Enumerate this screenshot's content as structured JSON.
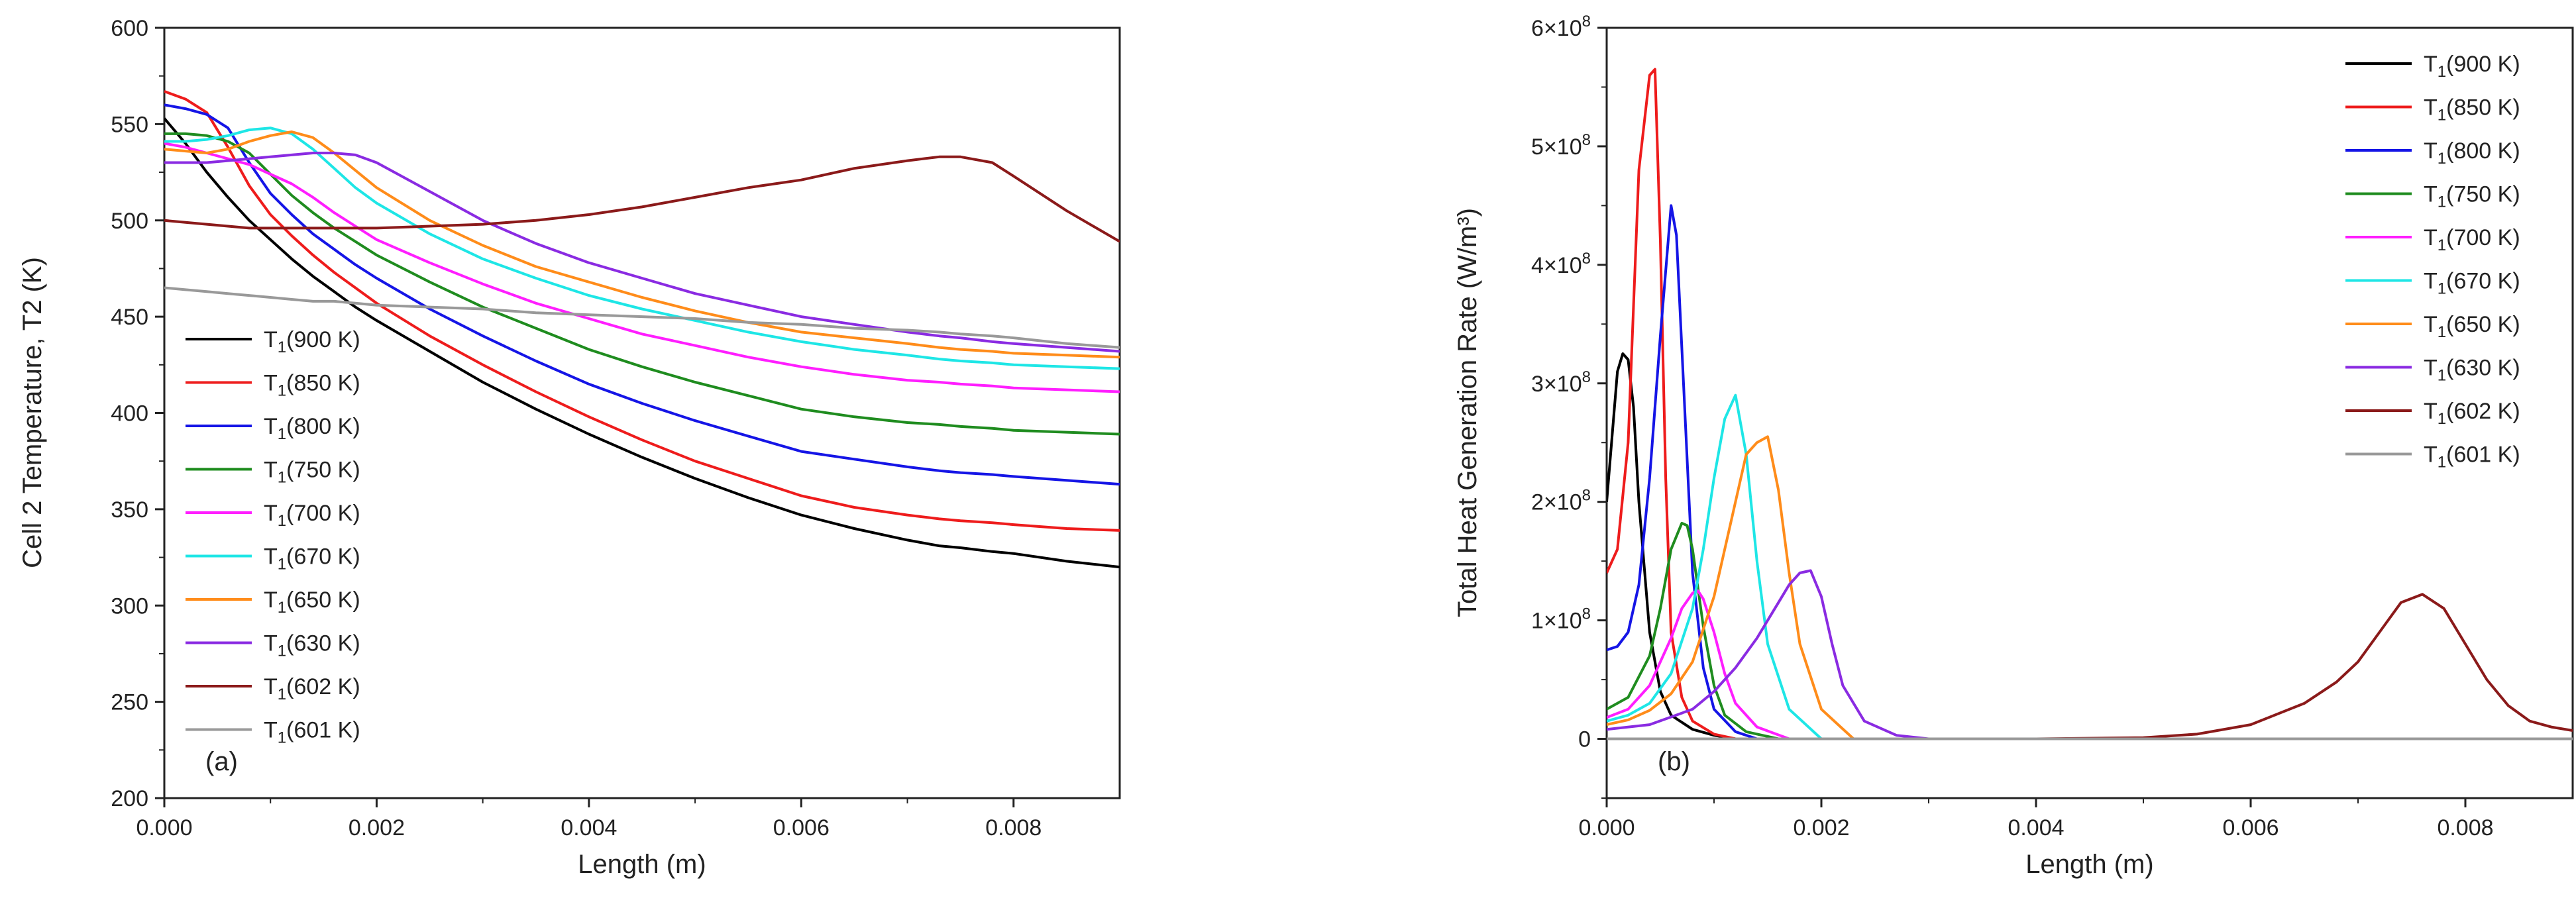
{
  "chart_data": [
    {
      "type": "line",
      "panel_label": "(a)",
      "title": "",
      "xlabel": "Length (m)",
      "ylabel": "Cell 2 Temperature, T2 (K)",
      "xlim": [
        0,
        0.009
      ],
      "ylim": [
        200,
        600
      ],
      "xticks": [
        "0.000",
        "0.002",
        "0.004",
        "0.006",
        "0.008"
      ],
      "xtick_values": [
        0,
        0.002,
        0.004,
        0.006,
        0.008
      ],
      "yticks": [
        "200",
        "250",
        "300",
        "350",
        "400",
        "450",
        "500",
        "550",
        "600"
      ],
      "ytick_values": [
        200,
        250,
        300,
        350,
        400,
        450,
        500,
        550,
        600
      ],
      "legend_position": "lower-left",
      "x": [
        0,
        0.0002,
        0.0004,
        0.0006,
        0.0008,
        0.001,
        0.0012,
        0.0014,
        0.0016,
        0.0018,
        0.002,
        0.0025,
        0.003,
        0.0035,
        0.004,
        0.0045,
        0.005,
        0.0055,
        0.006,
        0.0065,
        0.007,
        0.0073,
        0.0075,
        0.0078,
        0.008,
        0.0085,
        0.009
      ],
      "series": [
        {
          "name": "900 K",
          "color": "#000000",
          "values": [
            553,
            540,
            525,
            512,
            500,
            490,
            480,
            471,
            463,
            455,
            448,
            432,
            416,
            402,
            389,
            377,
            366,
            356,
            347,
            340,
            334,
            331,
            330,
            328,
            327,
            323,
            320
          ]
        },
        {
          "name": "850 K",
          "color": "#ee1c1c",
          "values": [
            567,
            563,
            556,
            538,
            518,
            503,
            492,
            482,
            473,
            465,
            457,
            440,
            425,
            411,
            398,
            386,
            375,
            366,
            357,
            351,
            347,
            345,
            344,
            343,
            342,
            340,
            339
          ]
        },
        {
          "name": "800 K",
          "color": "#1515e6",
          "values": [
            560,
            558,
            555,
            548,
            530,
            514,
            503,
            493,
            485,
            477,
            470,
            454,
            440,
            427,
            415,
            405,
            396,
            388,
            380,
            376,
            372,
            370,
            369,
            368,
            367,
            365,
            363
          ]
        },
        {
          "name": "750 K",
          "color": "#1f8c1f",
          "values": [
            545,
            545,
            544,
            541,
            535,
            524,
            513,
            504,
            496,
            489,
            482,
            468,
            455,
            444,
            433,
            424,
            416,
            409,
            402,
            398,
            395,
            394,
            393,
            392,
            391,
            390,
            389
          ]
        },
        {
          "name": "700 K",
          "color": "#ff1eff",
          "values": [
            540,
            538,
            535,
            532,
            529,
            524,
            519,
            512,
            504,
            497,
            490,
            478,
            467,
            457,
            449,
            441,
            435,
            429,
            424,
            420,
            417,
            416,
            415,
            414,
            413,
            412,
            411
          ]
        },
        {
          "name": "670 K",
          "color": "#1ee6e6",
          "values": [
            541,
            541,
            542,
            544,
            547,
            548,
            545,
            537,
            527,
            517,
            509,
            493,
            480,
            470,
            461,
            454,
            448,
            442,
            437,
            433,
            430,
            428,
            427,
            426,
            425,
            424,
            423
          ]
        },
        {
          "name": "650 K",
          "color": "#ff8c1a",
          "values": [
            537,
            536,
            535,
            537,
            541,
            544,
            546,
            543,
            535,
            526,
            517,
            500,
            487,
            476,
            468,
            460,
            453,
            447,
            442,
            439,
            436,
            434,
            433,
            432,
            431,
            430,
            429
          ]
        },
        {
          "name": "630 K",
          "color": "#8a2be2",
          "values": [
            530,
            530,
            530,
            531,
            532,
            533,
            534,
            535,
            535,
            534,
            530,
            515,
            500,
            488,
            478,
            470,
            462,
            456,
            450,
            446,
            442,
            440,
            439,
            437,
            436,
            434,
            432
          ]
        },
        {
          "name": "602 K",
          "color": "#8b1a1a",
          "values": [
            500,
            499,
            498,
            497,
            496,
            496,
            496,
            496,
            496,
            496,
            496,
            497,
            498,
            500,
            503,
            507,
            512,
            517,
            521,
            527,
            531,
            533,
            533,
            530,
            523,
            505,
            489
          ]
        },
        {
          "name": "601 K",
          "color": "#999999",
          "values": [
            465,
            464,
            463,
            462,
            461,
            460,
            459,
            458,
            458,
            457,
            456,
            455,
            454,
            452,
            451,
            450,
            449,
            447,
            446,
            444,
            443,
            442,
            441,
            440,
            439,
            436,
            434
          ]
        }
      ]
    },
    {
      "type": "line",
      "panel_label": "(b)",
      "title": "",
      "xlabel": "Length (m)",
      "ylabel": "Total Heat Generation Rate (W/m³)",
      "xlim": [
        0,
        0.009
      ],
      "ylim": [
        -50000000,
        600000000
      ],
      "xticks": [
        "0.000",
        "0.002",
        "0.004",
        "0.006",
        "0.008"
      ],
      "xtick_values": [
        0,
        0.002,
        0.004,
        0.006,
        0.008
      ],
      "yticks": [
        {
          "value": 0,
          "mantissa": "0",
          "exponent": ""
        },
        {
          "value": 100000000,
          "mantissa": "1×10",
          "exponent": "8"
        },
        {
          "value": 200000000,
          "mantissa": "2×10",
          "exponent": "8"
        },
        {
          "value": 300000000,
          "mantissa": "3×10",
          "exponent": "8"
        },
        {
          "value": 400000000,
          "mantissa": "4×10",
          "exponent": "8"
        },
        {
          "value": 500000000,
          "mantissa": "5×10",
          "exponent": "8"
        },
        {
          "value": 600000000,
          "mantissa": "6×10",
          "exponent": "8"
        }
      ],
      "legend_position": "top-right",
      "series": [
        {
          "name": "900 K",
          "color": "#000000",
          "x": [
            0,
            0.0001,
            0.00015,
            0.0002,
            0.00025,
            0.0003,
            0.0004,
            0.0005,
            0.0006,
            0.0008,
            0.001,
            0.0012
          ],
          "values": [
            200000000,
            310000000,
            325000000,
            320000000,
            280000000,
            200000000,
            90000000,
            40000000,
            20000000,
            8000000,
            3000000,
            0
          ]
        },
        {
          "name": "850 K",
          "color": "#ee1c1c",
          "x": [
            0,
            0.0001,
            0.0002,
            0.0003,
            0.0004,
            0.00045,
            0.0005,
            0.00055,
            0.0006,
            0.0007,
            0.0008,
            0.001,
            0.0012
          ],
          "values": [
            140000000,
            160000000,
            250000000,
            480000000,
            560000000,
            565000000,
            420000000,
            220000000,
            90000000,
            35000000,
            15000000,
            4000000,
            0
          ]
        },
        {
          "name": "800 K",
          "color": "#1515e6",
          "x": [
            0,
            0.0001,
            0.0002,
            0.0003,
            0.0004,
            0.0005,
            0.0006,
            0.00065,
            0.0007,
            0.0008,
            0.0009,
            0.001,
            0.0012,
            0.0014
          ],
          "values": [
            75000000,
            78000000,
            90000000,
            130000000,
            220000000,
            340000000,
            450000000,
            425000000,
            330000000,
            140000000,
            60000000,
            25000000,
            6000000,
            0
          ]
        },
        {
          "name": "750 K",
          "color": "#1f8c1f",
          "x": [
            0,
            0.0002,
            0.0004,
            0.0005,
            0.0006,
            0.0007,
            0.00075,
            0.0008,
            0.0009,
            0.001,
            0.0011,
            0.0013,
            0.0016
          ],
          "values": [
            25000000,
            35000000,
            70000000,
            110000000,
            160000000,
            182000000,
            180000000,
            160000000,
            95000000,
            45000000,
            20000000,
            6000000,
            0
          ]
        },
        {
          "name": "700 K",
          "color": "#ff1eff",
          "x": [
            0,
            0.0002,
            0.0004,
            0.0006,
            0.0007,
            0.0008,
            0.00085,
            0.0009,
            0.001,
            0.0011,
            0.0012,
            0.0014,
            0.0017
          ],
          "values": [
            18000000,
            25000000,
            45000000,
            85000000,
            110000000,
            123000000,
            125000000,
            118000000,
            90000000,
            55000000,
            30000000,
            10000000,
            0
          ]
        },
        {
          "name": "670 K",
          "color": "#1ee6e6",
          "x": [
            0,
            0.0002,
            0.0004,
            0.0006,
            0.0008,
            0.0009,
            0.001,
            0.0011,
            0.0012,
            0.0013,
            0.0014,
            0.0015,
            0.0017,
            0.002
          ],
          "values": [
            15000000,
            20000000,
            30000000,
            55000000,
            110000000,
            160000000,
            220000000,
            270000000,
            290000000,
            240000000,
            150000000,
            80000000,
            25000000,
            0
          ]
        },
        {
          "name": "650 K",
          "color": "#ff8c1a",
          "x": [
            0,
            0.0002,
            0.0004,
            0.0006,
            0.0008,
            0.001,
            0.0012,
            0.0013,
            0.0014,
            0.0015,
            0.0016,
            0.0017,
            0.0018,
            0.002,
            0.0023
          ],
          "values": [
            12000000,
            16000000,
            24000000,
            38000000,
            65000000,
            120000000,
            200000000,
            240000000,
            250000000,
            255000000,
            210000000,
            140000000,
            80000000,
            25000000,
            0
          ]
        },
        {
          "name": "630 K",
          "color": "#8a2be2",
          "x": [
            0,
            0.0004,
            0.0008,
            0.001,
            0.0012,
            0.0014,
            0.0016,
            0.0017,
            0.0018,
            0.0019,
            0.002,
            0.0021,
            0.0022,
            0.0024,
            0.0027,
            0.003
          ],
          "values": [
            8000000,
            12000000,
            25000000,
            40000000,
            60000000,
            85000000,
            115000000,
            130000000,
            140000000,
            142000000,
            120000000,
            80000000,
            45000000,
            15000000,
            3000000,
            0
          ]
        },
        {
          "name": "602 K",
          "color": "#8b1a1a",
          "x": [
            0.001,
            0.002,
            0.003,
            0.004,
            0.005,
            0.0055,
            0.006,
            0.0065,
            0.0068,
            0.007,
            0.0072,
            0.0074,
            0.0076,
            0.0078,
            0.008,
            0.0082,
            0.0084,
            0.0086,
            0.0088,
            0.009
          ],
          "values": [
            0,
            0,
            0,
            0,
            1000000,
            4000000,
            12000000,
            30000000,
            48000000,
            65000000,
            90000000,
            115000000,
            122000000,
            110000000,
            80000000,
            50000000,
            28000000,
            15000000,
            10000000,
            7000000
          ]
        },
        {
          "name": "601 K",
          "color": "#999999",
          "x": [
            0,
            0.009
          ],
          "values": [
            0,
            0
          ]
        }
      ]
    }
  ]
}
